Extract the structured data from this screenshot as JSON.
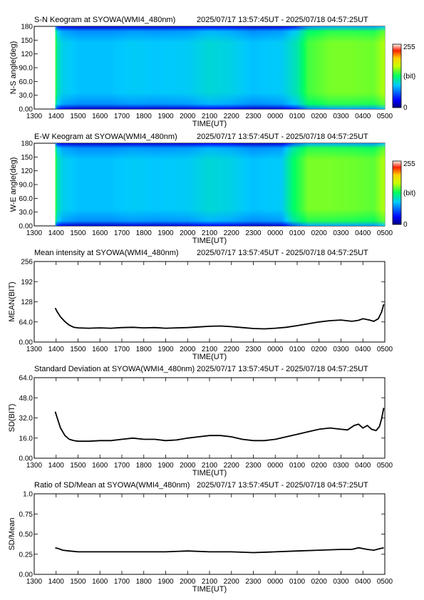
{
  "time_axis": {
    "ticks": [
      "1300",
      "1400",
      "1500",
      "1600",
      "1700",
      "1800",
      "1900",
      "2000",
      "2100",
      "2200",
      "2300",
      "0000",
      "0100",
      "0200",
      "0300",
      "0400",
      "0500"
    ],
    "label": "TIME(UT)"
  },
  "time_range": "2025/07/17 13:57:45UT - 2025/07/18 04:57:25UT",
  "colorbar": {
    "max_label": "255",
    "unit_label": "(bit)",
    "min_label": "0"
  },
  "colors": {
    "line": "#000000",
    "frame": "#000000"
  },
  "chart_data": [
    {
      "id": "sn",
      "type": "heatmap",
      "title": "S-N Keogram at SYOWA(WMI4_480nm)",
      "ylabel": "N-S angle(deg)",
      "xlabel": "TIME(UT)",
      "x_range_hours": [
        13,
        29
      ],
      "ylim": [
        0,
        180
      ],
      "yticks": [
        "0.00",
        "30.0",
        "60.0",
        "90.0",
        "120",
        "150",
        "180"
      ],
      "data_start_hour": 13.96,
      "colorscale": {
        "min": 0,
        "max": 255,
        "unit": "bit"
      },
      "intensity_profile": [
        {
          "t": 13.96,
          "v": 150
        },
        {
          "t": 14.05,
          "v": 110
        },
        {
          "t": 14.3,
          "v": 95
        },
        {
          "t": 15.0,
          "v": 88
        },
        {
          "t": 16.5,
          "v": 88
        },
        {
          "t": 17.5,
          "v": 92
        },
        {
          "t": 18.5,
          "v": 90
        },
        {
          "t": 20.0,
          "v": 92
        },
        {
          "t": 21.0,
          "v": 100
        },
        {
          "t": 22.0,
          "v": 96
        },
        {
          "t": 23.0,
          "v": 88
        },
        {
          "t": 24.3,
          "v": 92
        },
        {
          "t": 25.0,
          "v": 110
        },
        {
          "t": 25.5,
          "v": 140
        },
        {
          "t": 26.5,
          "v": 150
        },
        {
          "t": 27.5,
          "v": 150
        },
        {
          "t": 28.5,
          "v": 148
        },
        {
          "t": 28.95,
          "v": 160
        }
      ]
    },
    {
      "id": "ew",
      "type": "heatmap",
      "title": "E-W Keogram at SYOWA(WMI4_480nm)",
      "ylabel": "W-E angle(deg)",
      "xlabel": "TIME(UT)",
      "x_range_hours": [
        13,
        29
      ],
      "ylim": [
        0,
        180
      ],
      "yticks": [
        "0.00",
        "30.0",
        "60.0",
        "90.0",
        "120",
        "150",
        "180"
      ],
      "data_start_hour": 13.96,
      "colorscale": {
        "min": 0,
        "max": 255,
        "unit": "bit"
      },
      "intensity_profile": [
        {
          "t": 13.96,
          "v": 150
        },
        {
          "t": 14.05,
          "v": 110
        },
        {
          "t": 14.3,
          "v": 95
        },
        {
          "t": 15.0,
          "v": 88
        },
        {
          "t": 16.5,
          "v": 88
        },
        {
          "t": 17.5,
          "v": 92
        },
        {
          "t": 18.5,
          "v": 90
        },
        {
          "t": 20.0,
          "v": 92
        },
        {
          "t": 21.0,
          "v": 100
        },
        {
          "t": 22.0,
          "v": 96
        },
        {
          "t": 23.0,
          "v": 88
        },
        {
          "t": 24.3,
          "v": 92
        },
        {
          "t": 24.8,
          "v": 125
        },
        {
          "t": 25.5,
          "v": 150
        },
        {
          "t": 26.5,
          "v": 150
        },
        {
          "t": 27.5,
          "v": 148
        },
        {
          "t": 28.5,
          "v": 145
        },
        {
          "t": 28.95,
          "v": 160
        }
      ]
    },
    {
      "id": "mean",
      "type": "line",
      "title": "Mean intensity at SYOWA(WMI4_480nm)",
      "ylabel": "MEAN(BIT)",
      "xlabel": "TIME(UT)",
      "x_range_hours": [
        13,
        29
      ],
      "ylim": [
        0,
        256
      ],
      "yticks": [
        "0.00",
        "64.0",
        "128",
        "192",
        "256"
      ],
      "series": [
        {
          "x": [
            13.96,
            14.05,
            14.2,
            14.4,
            14.6,
            14.8,
            15.0,
            15.5,
            16.0,
            16.5,
            17.0,
            17.5,
            18.0,
            18.5,
            19.0,
            19.5,
            20.0,
            20.5,
            21.0,
            21.5,
            22.0,
            22.5,
            23.0,
            23.5,
            24.0,
            24.5,
            25.0,
            25.5,
            26.0,
            26.5,
            27.0,
            27.5,
            27.8,
            28.0,
            28.3,
            28.5,
            28.7,
            28.85,
            28.95
          ],
          "y": [
            108,
            96,
            80,
            65,
            54,
            47,
            45,
            44,
            45,
            44,
            46,
            47,
            45,
            46,
            44,
            45,
            46,
            48,
            50,
            51,
            49,
            46,
            43,
            42,
            44,
            47,
            52,
            58,
            64,
            68,
            70,
            66,
            69,
            74,
            70,
            66,
            74,
            95,
            120
          ]
        }
      ]
    },
    {
      "id": "sd",
      "type": "line",
      "title": "Standard Deviation at SYOWA(WMI4_480nm)",
      "ylabel": "SD(BIT)",
      "xlabel": "TIME(UT)",
      "x_range_hours": [
        13,
        29
      ],
      "ylim": [
        0,
        64
      ],
      "yticks": [
        "0.00",
        "16.0",
        "32.0",
        "48.0",
        "64.0"
      ],
      "series": [
        {
          "x": [
            13.96,
            14.05,
            14.2,
            14.4,
            14.6,
            14.8,
            15.0,
            15.5,
            16.0,
            16.5,
            17.0,
            17.5,
            18.0,
            18.5,
            19.0,
            19.5,
            20.0,
            20.5,
            21.0,
            21.5,
            22.0,
            22.5,
            23.0,
            23.5,
            24.0,
            24.5,
            25.0,
            25.5,
            26.0,
            26.5,
            27.0,
            27.3,
            27.6,
            27.8,
            28.0,
            28.2,
            28.4,
            28.6,
            28.75,
            28.85,
            28.95
          ],
          "y": [
            37,
            32,
            24,
            18,
            15,
            14,
            13.5,
            13.5,
            14,
            14,
            15,
            16,
            15,
            15,
            14,
            14.5,
            16,
            17,
            18,
            18,
            17,
            15,
            14,
            14,
            15,
            17,
            19,
            21,
            23,
            24,
            23,
            22.5,
            26,
            27,
            24,
            26,
            23,
            22,
            25,
            31,
            40
          ]
        }
      ]
    },
    {
      "id": "ratio",
      "type": "line",
      "title": "Ratio of SD/Mean at SYOWA(WMI4_480nm)",
      "ylabel": "SD/Mean",
      "xlabel": "TIME(UT)",
      "x_range_hours": [
        13,
        29
      ],
      "ylim": [
        0,
        1
      ],
      "yticks": [
        "0.00",
        "0.25",
        "0.50",
        "0.75",
        "1.0"
      ],
      "series": [
        {
          "x": [
            13.96,
            14.1,
            14.3,
            14.6,
            15.0,
            15.5,
            16.0,
            17.0,
            18.0,
            19.0,
            20.0,
            21.0,
            22.0,
            23.0,
            24.0,
            25.0,
            26.0,
            27.0,
            27.5,
            27.8,
            28.2,
            28.5,
            28.8,
            28.95
          ],
          "y": [
            0.33,
            0.32,
            0.3,
            0.29,
            0.28,
            0.28,
            0.28,
            0.28,
            0.28,
            0.28,
            0.29,
            0.28,
            0.28,
            0.27,
            0.28,
            0.29,
            0.3,
            0.31,
            0.31,
            0.33,
            0.31,
            0.3,
            0.32,
            0.33
          ]
        }
      ]
    }
  ]
}
